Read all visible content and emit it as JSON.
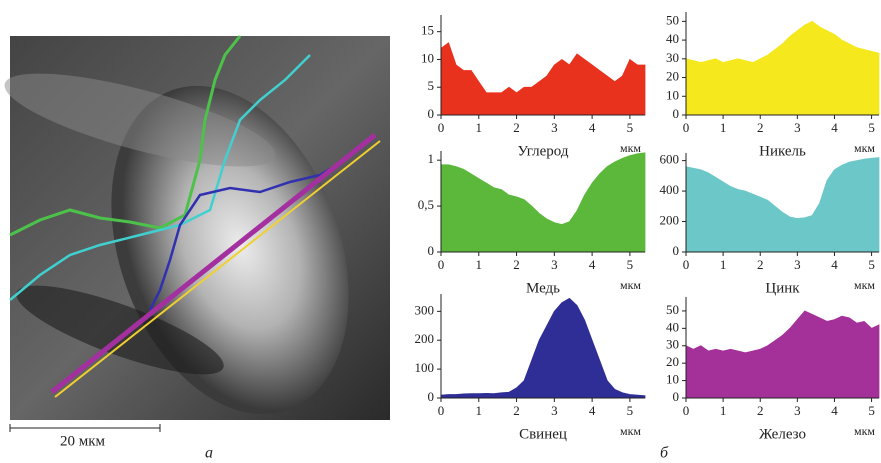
{
  "image": {
    "scale_bar": "20 мкм",
    "label": "а"
  },
  "charts_label": "б",
  "chart_data": [
    {
      "type": "area",
      "xlabel": "Углерод",
      "x_unit": "мкм",
      "color": "#e8321e",
      "x": [
        0,
        0.2,
        0.4,
        0.6,
        0.8,
        1,
        1.2,
        1.4,
        1.6,
        1.8,
        2,
        2.2,
        2.4,
        2.6,
        2.8,
        3,
        3.2,
        3.4,
        3.6,
        3.8,
        4,
        4.2,
        4.4,
        4.6,
        4.8,
        5,
        5.2,
        5.4
      ],
      "values": [
        12,
        13,
        9,
        8,
        8,
        6,
        4,
        4,
        4,
        5,
        4,
        5,
        5,
        6,
        7,
        9,
        10,
        9,
        11,
        10,
        9,
        8,
        7,
        6,
        7,
        10,
        9,
        9
      ],
      "xlim": [
        0,
        5.4
      ],
      "xticks": [
        0,
        1,
        2,
        3,
        4,
        5
      ],
      "ylim": [
        0,
        18
      ],
      "yticks": [
        0,
        5,
        10,
        15
      ]
    },
    {
      "type": "area",
      "xlabel": "Никель",
      "x_unit": "мкм",
      "color": "#f5e81c",
      "x": [
        0,
        0.2,
        0.4,
        0.6,
        0.8,
        1,
        1.2,
        1.4,
        1.6,
        1.8,
        2,
        2.2,
        2.4,
        2.6,
        2.8,
        3,
        3.2,
        3.4,
        3.6,
        3.8,
        4,
        4.2,
        4.4,
        4.6,
        4.8,
        5,
        5.2
      ],
      "values": [
        30,
        29,
        28,
        29,
        30,
        28,
        29,
        30,
        29,
        28,
        30,
        32,
        35,
        38,
        42,
        45,
        48,
        50,
        47,
        45,
        43,
        40,
        38,
        36,
        35,
        34,
        33
      ],
      "xlim": [
        0,
        5.2
      ],
      "xticks": [
        0,
        1,
        2,
        3,
        4,
        5
      ],
      "ylim": [
        0,
        55
      ],
      "yticks": [
        0,
        10,
        20,
        30,
        40,
        50
      ]
    },
    {
      "type": "area",
      "xlabel": "Медь",
      "x_unit": "мкм",
      "color": "#5cb83a",
      "x": [
        0,
        0.2,
        0.4,
        0.6,
        0.8,
        1,
        1.2,
        1.4,
        1.6,
        1.8,
        2,
        2.2,
        2.4,
        2.6,
        2.8,
        3,
        3.2,
        3.4,
        3.6,
        3.8,
        4,
        4.2,
        4.4,
        4.6,
        4.8,
        5,
        5.2,
        5.4
      ],
      "values": [
        0.95,
        0.95,
        0.93,
        0.9,
        0.85,
        0.8,
        0.75,
        0.7,
        0.68,
        0.62,
        0.6,
        0.57,
        0.5,
        0.42,
        0.36,
        0.32,
        0.3,
        0.33,
        0.45,
        0.62,
        0.75,
        0.85,
        0.93,
        0.98,
        1.02,
        1.05,
        1.07,
        1.08
      ],
      "xlim": [
        0,
        5.4
      ],
      "xticks": [
        0,
        1,
        2,
        3,
        4,
        5
      ],
      "ylim": [
        0,
        1.1
      ],
      "yticks": [
        0,
        {
          "value": 0.5,
          "label": "0,5"
        },
        1
      ]
    },
    {
      "type": "area",
      "xlabel": "Цинк",
      "x_unit": "мкм",
      "color": "#6cc8c8",
      "x": [
        0,
        0.2,
        0.4,
        0.6,
        0.8,
        1,
        1.2,
        1.4,
        1.6,
        1.8,
        2,
        2.2,
        2.4,
        2.6,
        2.8,
        3,
        3.2,
        3.4,
        3.6,
        3.8,
        4,
        4.2,
        4.4,
        4.6,
        4.8,
        5,
        5.2
      ],
      "values": [
        560,
        550,
        540,
        520,
        490,
        460,
        430,
        410,
        400,
        380,
        360,
        340,
        300,
        260,
        230,
        220,
        225,
        240,
        320,
        470,
        540,
        570,
        590,
        600,
        610,
        615,
        620
      ],
      "xlim": [
        0,
        5.2
      ],
      "xticks": [
        0,
        1,
        2,
        3,
        4,
        5
      ],
      "ylim": [
        0,
        650
      ],
      "yticks": [
        0,
        200,
        400,
        600
      ]
    },
    {
      "type": "area",
      "xlabel": "Свинец",
      "x_unit": "мкм",
      "color": "#2e2e96",
      "x": [
        0,
        0.2,
        0.4,
        0.6,
        0.8,
        1,
        1.2,
        1.4,
        1.6,
        1.8,
        2,
        2.2,
        2.4,
        2.6,
        2.8,
        3,
        3.2,
        3.4,
        3.6,
        3.8,
        4,
        4.2,
        4.4,
        4.6,
        4.8,
        5,
        5.2,
        5.4
      ],
      "values": [
        10,
        12,
        12,
        14,
        15,
        15,
        16,
        15,
        18,
        20,
        35,
        60,
        130,
        200,
        250,
        300,
        330,
        345,
        320,
        270,
        200,
        130,
        60,
        30,
        18,
        12,
        10,
        8
      ],
      "xlim": [
        0,
        5.4
      ],
      "xticks": [
        0,
        1,
        2,
        3,
        4,
        5
      ],
      "ylim": [
        0,
        360
      ],
      "yticks": [
        0,
        100,
        200,
        300
      ]
    },
    {
      "type": "area",
      "xlabel": "Железо",
      "x_unit": "мкм",
      "color": "#a4309a",
      "x": [
        0,
        0.2,
        0.4,
        0.6,
        0.8,
        1,
        1.2,
        1.4,
        1.6,
        1.8,
        2,
        2.2,
        2.4,
        2.6,
        2.8,
        3,
        3.2,
        3.4,
        3.6,
        3.8,
        4,
        4.2,
        4.4,
        4.6,
        4.8,
        5,
        5.2
      ],
      "values": [
        30,
        28,
        30,
        27,
        28,
        27,
        28,
        27,
        26,
        27,
        28,
        30,
        33,
        36,
        40,
        45,
        50,
        48,
        46,
        44,
        45,
        47,
        46,
        43,
        44,
        40,
        42
      ],
      "xlim": [
        0,
        5.2
      ],
      "xticks": [
        0,
        1,
        2,
        3,
        4,
        5
      ],
      "ylim": [
        0,
        58
      ],
      "yticks": [
        0,
        10,
        20,
        30,
        40,
        50
      ]
    }
  ]
}
